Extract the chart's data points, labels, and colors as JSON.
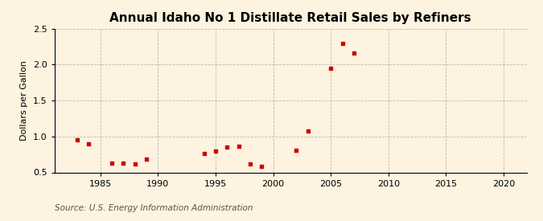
{
  "title": "Annual Idaho No 1 Distillate Retail Sales by Refiners",
  "ylabel": "Dollars per Gallon",
  "source": "Source: U.S. Energy Information Administration",
  "background_color": "#fdf3e0",
  "x_data": [
    1983,
    1984,
    1986,
    1987,
    1988,
    1989,
    1994,
    1995,
    1996,
    1997,
    1998,
    1999,
    2002,
    2003,
    2005,
    2006,
    2007
  ],
  "y_data": [
    0.95,
    0.9,
    0.63,
    0.63,
    0.62,
    0.69,
    0.76,
    0.8,
    0.85,
    0.86,
    0.62,
    0.58,
    0.81,
    1.08,
    1.95,
    2.3,
    2.16
  ],
  "marker_color": "#cc0000",
  "marker_size": 12,
  "xlim": [
    1981,
    2022
  ],
  "ylim": [
    0.5,
    2.5
  ],
  "xticks": [
    1985,
    1990,
    1995,
    2000,
    2005,
    2010,
    2015,
    2020
  ],
  "yticks": [
    0.5,
    1.0,
    1.5,
    2.0,
    2.5
  ],
  "grid_color": "#aaaaaa",
  "title_fontsize": 11,
  "label_fontsize": 8,
  "tick_fontsize": 8,
  "source_fontsize": 7.5
}
